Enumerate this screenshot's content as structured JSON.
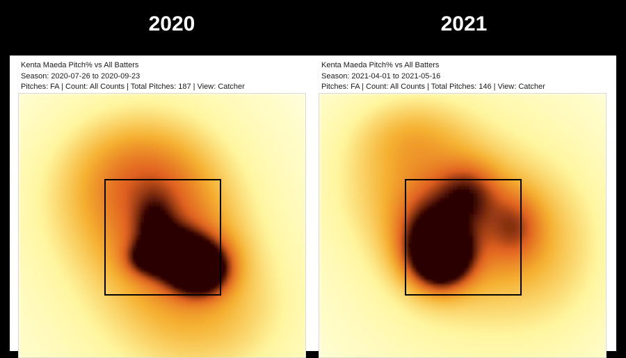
{
  "years": [
    "2020",
    "2021"
  ],
  "chart_data": [
    {
      "type": "heatmap",
      "title": "Kenta Maeda Pitch% vs All Batters",
      "season_line": "Season: 2020-07-26 to 2020-09-23",
      "filters_line": "Pitches: FA | Count: All Counts | Total Pitches: 187 | View: Catcher",
      "player": "Kenta Maeda",
      "pitch_type": "FA",
      "count": "All Counts",
      "total_pitches": 187,
      "view": "Catcher",
      "strike_zone_shown": true,
      "colors": {
        "low": "#fff6a0",
        "mid": "#f5b030",
        "high": "#e06020",
        "peak": "#2a0000"
      },
      "density_blobs": [
        {
          "x": 0.5,
          "y": 0.55,
          "sx": 0.42,
          "sy": 0.52,
          "w": 0.33
        },
        {
          "x": 0.28,
          "y": 0.35,
          "sx": 0.22,
          "sy": 0.22,
          "w": 0.22
        },
        {
          "x": 0.7,
          "y": 0.8,
          "sx": 0.25,
          "sy": 0.2,
          "w": 0.22
        },
        {
          "x": 0.4,
          "y": 0.22,
          "sx": 0.18,
          "sy": 0.15,
          "w": 0.18
        },
        {
          "x": 0.55,
          "y": 0.45,
          "sx": 0.18,
          "sy": 0.22,
          "w": 0.3
        },
        {
          "x": 0.47,
          "y": 0.46,
          "sx": 0.05,
          "sy": 0.08,
          "w": 0.25
        },
        {
          "x": 0.58,
          "y": 0.57,
          "sx": 0.11,
          "sy": 0.07,
          "w": 0.45
        },
        {
          "x": 0.64,
          "y": 0.63,
          "sx": 0.07,
          "sy": 0.06,
          "w": 0.8
        },
        {
          "x": 0.54,
          "y": 0.56,
          "sx": 0.05,
          "sy": 0.05,
          "w": 0.35
        },
        {
          "x": 0.44,
          "y": 0.58,
          "sx": 0.05,
          "sy": 0.04,
          "w": 0.35
        }
      ]
    },
    {
      "type": "heatmap",
      "title": "Kenta Maeda Pitch% vs All Batters",
      "season_line": "Season: 2021-04-01 to 2021-05-16",
      "filters_line": "Pitches: FA | Count: All Counts | Total Pitches: 146 | View: Catcher",
      "player": "Kenta Maeda",
      "pitch_type": "FA",
      "count": "All Counts",
      "total_pitches": 146,
      "view": "Catcher",
      "strike_zone_shown": true,
      "colors": {
        "low": "#fff6a0",
        "mid": "#f5b030",
        "high": "#e06020",
        "peak": "#2a0000"
      },
      "density_blobs": [
        {
          "x": 0.5,
          "y": 0.48,
          "sx": 0.42,
          "sy": 0.48,
          "w": 0.33
        },
        {
          "x": 0.25,
          "y": 0.25,
          "sx": 0.22,
          "sy": 0.2,
          "w": 0.22
        },
        {
          "x": 0.85,
          "y": 0.55,
          "sx": 0.18,
          "sy": 0.25,
          "w": 0.2
        },
        {
          "x": 0.3,
          "y": 0.1,
          "sx": 0.15,
          "sy": 0.1,
          "w": 0.15
        },
        {
          "x": 0.5,
          "y": 0.48,
          "sx": 0.2,
          "sy": 0.2,
          "w": 0.3
        },
        {
          "x": 0.52,
          "y": 0.33,
          "sx": 0.08,
          "sy": 0.08,
          "w": 0.3
        },
        {
          "x": 0.7,
          "y": 0.46,
          "sx": 0.07,
          "sy": 0.09,
          "w": 0.25
        },
        {
          "x": 0.38,
          "y": 0.52,
          "sx": 0.09,
          "sy": 0.11,
          "w": 0.5
        },
        {
          "x": 0.42,
          "y": 0.58,
          "sx": 0.07,
          "sy": 0.07,
          "w": 0.8
        }
      ]
    }
  ]
}
